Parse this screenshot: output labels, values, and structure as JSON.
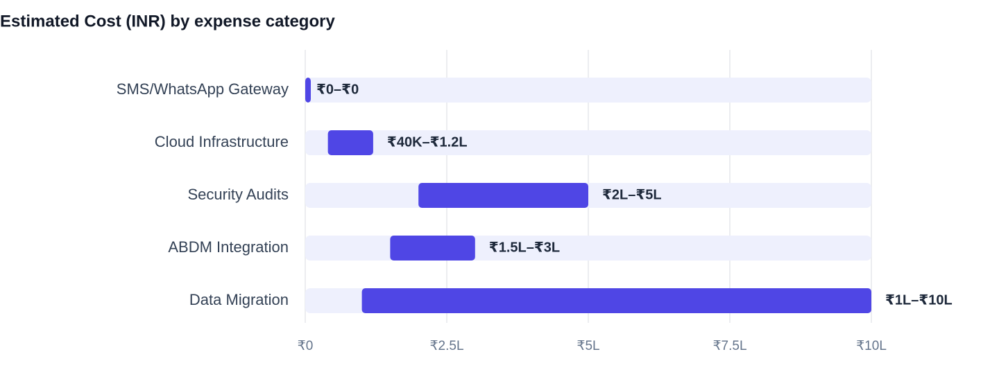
{
  "chart_data": {
    "type": "floating-bar",
    "title": "Estimated Cost (INR) by expense category",
    "categories": [
      "SMS/WhatsApp Gateway",
      "Cloud Infrastructure",
      "Security Audits",
      "ABDM Integration",
      "Data Migration"
    ],
    "low": [
      0,
      40000,
      200000,
      150000,
      100000
    ],
    "high": [
      0,
      120000,
      500000,
      300000,
      1000000
    ],
    "value_labels": [
      "₹0–₹0",
      "₹40K–₹1.2L",
      "₹2L–₹5L",
      "₹1.5L–₹3L",
      "₹1L–₹10L"
    ],
    "color": "#4f46e5",
    "track_color": "#eef0fd",
    "xlim": [
      0,
      1000000
    ],
    "xticks": [
      {
        "value": 0,
        "label": "₹0"
      },
      {
        "value": 250000,
        "label": "₹2.5L"
      },
      {
        "value": 500000,
        "label": "₹5L"
      },
      {
        "value": 750000,
        "label": "₹7.5L"
      },
      {
        "value": 1000000,
        "label": "₹10L"
      }
    ],
    "grid": true
  }
}
